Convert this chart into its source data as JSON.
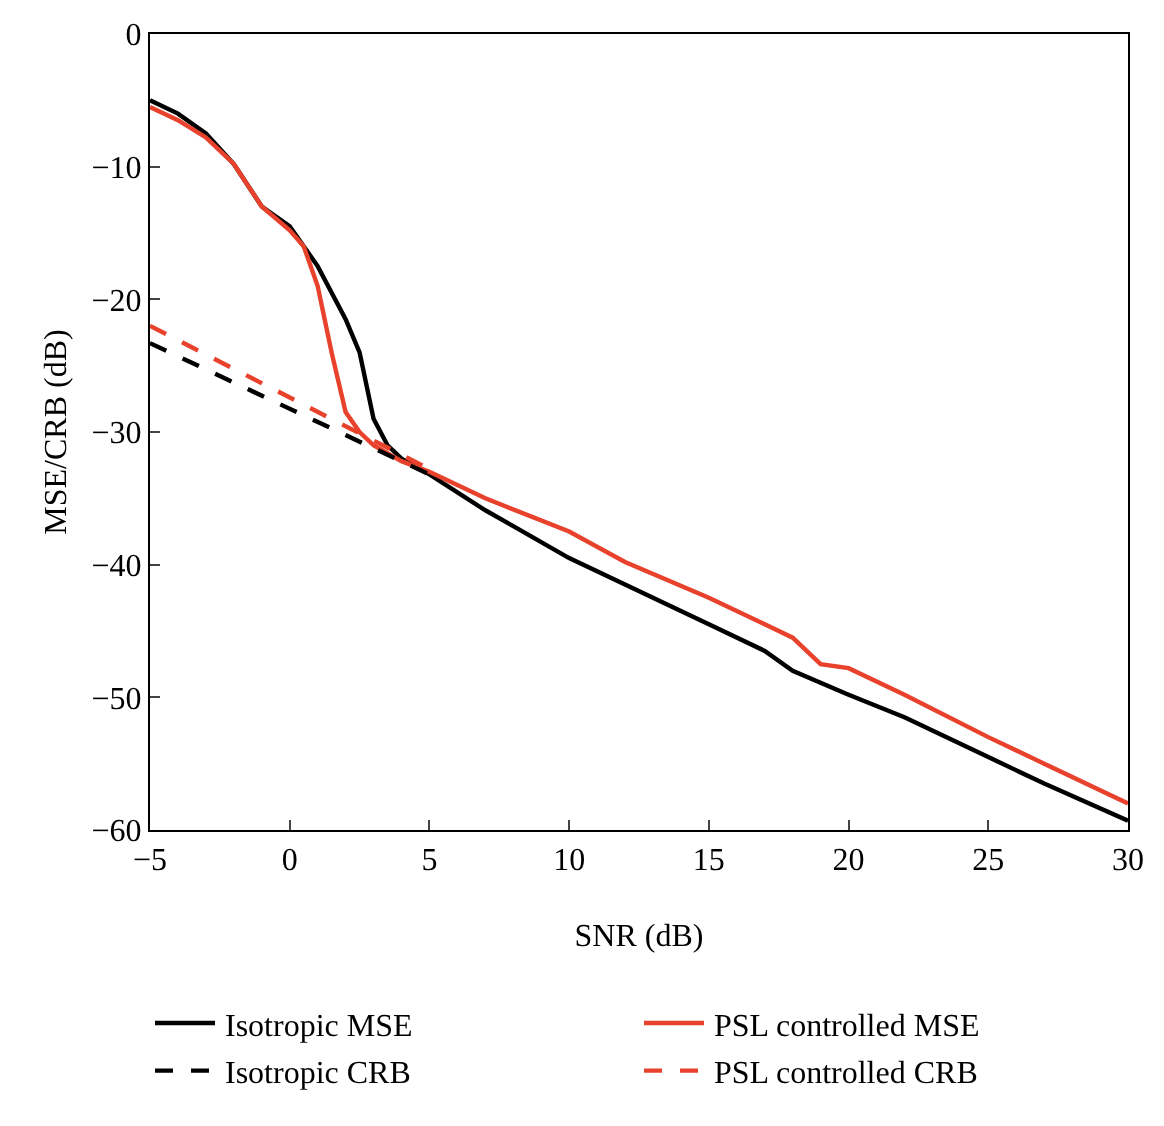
{
  "chart_data": {
    "type": "line",
    "xlabel": "SNR (dB)",
    "ylabel": "MSE/CRB (dB)",
    "xlim": [
      -5,
      30
    ],
    "ylim": [
      -60,
      0
    ],
    "xticks": [
      -5,
      0,
      5,
      10,
      15,
      20,
      25,
      30
    ],
    "yticks": [
      -60,
      -50,
      -40,
      -30,
      -20,
      -10,
      0
    ],
    "grid": false,
    "legend": "bottom",
    "marker": "none",
    "series": [
      {
        "name": "Isotropic MSE",
        "color": "#000000",
        "line_style": "solid",
        "x": [
          -5,
          -4,
          -3,
          -2,
          -1,
          0,
          1,
          2,
          2.5,
          3,
          3.5,
          4,
          5,
          7,
          8,
          10,
          12,
          15,
          17,
          18,
          20,
          22,
          25,
          27,
          30
        ],
        "values": [
          -5,
          -6,
          -7.5,
          -9.8,
          -13,
          -14.5,
          -17.5,
          -21.5,
          -24,
          -29,
          -31,
          -32,
          -33.2,
          -35.9,
          -37.1,
          -39.5,
          -41.5,
          -44.5,
          -46.5,
          -48,
          -49.8,
          -51.5,
          -54.5,
          -56.5,
          -59.3
        ]
      },
      {
        "name": "PSL controlled MSE",
        "color": "#e8412c",
        "line_style": "solid",
        "x": [
          -5,
          -4,
          -3,
          -2,
          -1,
          0,
          0.5,
          1,
          1.5,
          2,
          2.5,
          3,
          4,
          5,
          7,
          10,
          12,
          15,
          17,
          18,
          19,
          20,
          22,
          25,
          27,
          30
        ],
        "values": [
          -5.5,
          -6.5,
          -7.8,
          -9.8,
          -13,
          -14.8,
          -16,
          -19,
          -24,
          -28.5,
          -30,
          -31,
          -32.2,
          -33,
          -35,
          -37.5,
          -39.8,
          -42.5,
          -44.5,
          -45.5,
          -47.5,
          -47.8,
          -49.8,
          -53,
          -55,
          -58
        ]
      },
      {
        "name": "Isotropic CRB",
        "color": "#000000",
        "line_style": "dashed",
        "x": [
          -5,
          5
        ],
        "values": [
          -23.3,
          -33.2
        ]
      },
      {
        "name": "PSL controlled CRB",
        "color": "#e8412c",
        "line_style": "dashed",
        "x": [
          -5,
          5
        ],
        "values": [
          -22,
          -32.8
        ]
      }
    ]
  }
}
